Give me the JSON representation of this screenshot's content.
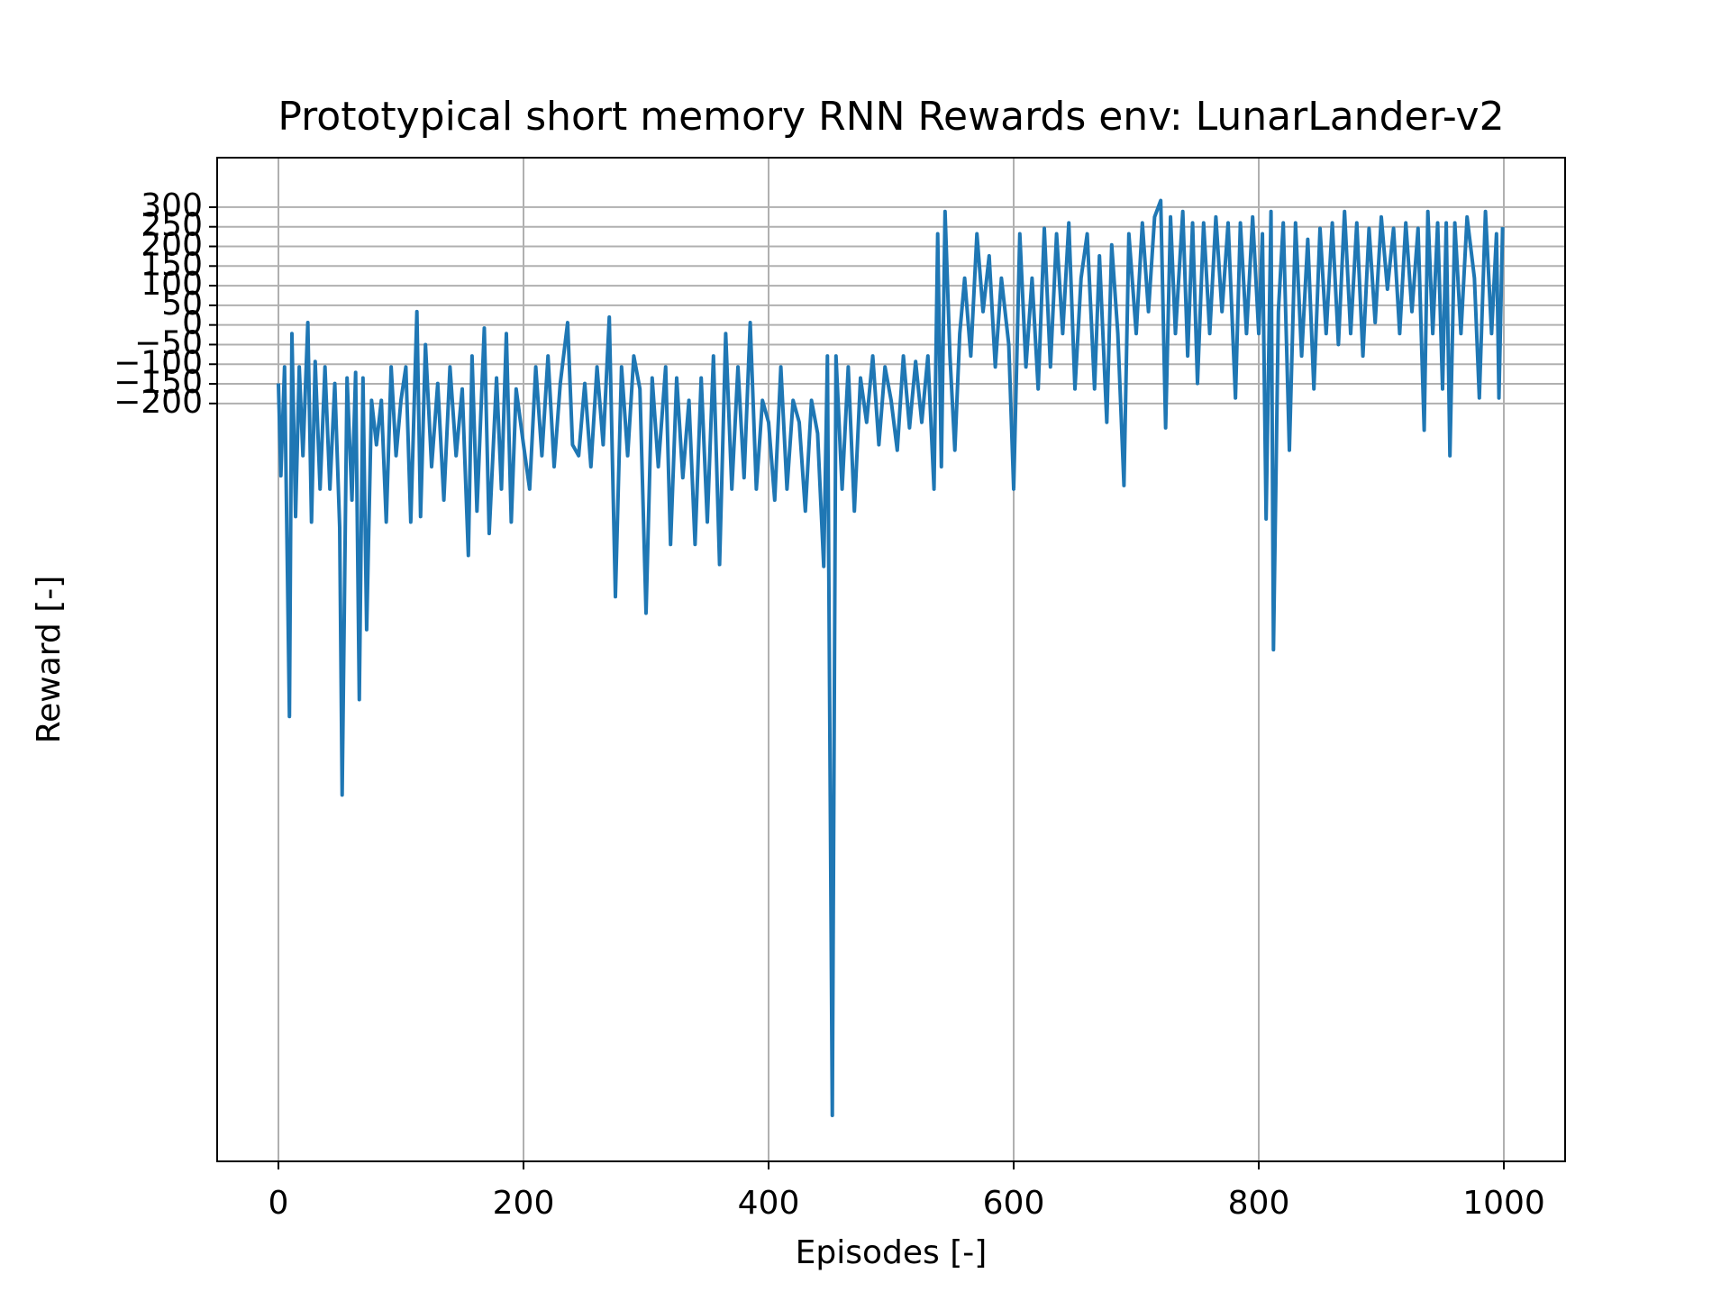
{
  "chart_data": {
    "type": "line",
    "title": "Prototypical short memory RNN Rewards env: LunarLander-v2",
    "xlabel": "Episodes [-]",
    "ylabel": "Reward [-]",
    "color": "#1f77b4",
    "grid": true,
    "xlim": [
      -50,
      1050
    ],
    "ylim": [
      -2130,
      426
    ],
    "xticks": [
      0,
      200,
      400,
      600,
      800,
      1000
    ],
    "yticks": [
      {
        "value": -200,
        "label": "−200"
      },
      {
        "value": -150,
        "label": "−150"
      },
      {
        "value": -100,
        "label": "−100"
      },
      {
        "value": -50,
        "label": "−50"
      },
      0,
      50,
      100,
      150,
      200,
      250,
      300
    ],
    "x": [
      0,
      2,
      5,
      9,
      11,
      14,
      17,
      20,
      24,
      27,
      30,
      34,
      38,
      42,
      46,
      50,
      52,
      56,
      60,
      63,
      66,
      69,
      72,
      76,
      80,
      84,
      88,
      92,
      96,
      100,
      104,
      108,
      113,
      116,
      120,
      125,
      130,
      135,
      140,
      145,
      150,
      155,
      158,
      162,
      168,
      172,
      178,
      182,
      186,
      190,
      194,
      200,
      205,
      210,
      215,
      220,
      225,
      230,
      236,
      240,
      245,
      250,
      255,
      260,
      265,
      270,
      275,
      280,
      285,
      290,
      295,
      300,
      305,
      310,
      316,
      320,
      325,
      330,
      335,
      340,
      345,
      350,
      355,
      360,
      365,
      370,
      375,
      380,
      385,
      390,
      395,
      400,
      405,
      410,
      415,
      420,
      425,
      430,
      435,
      440,
      445,
      448,
      452,
      455,
      460,
      465,
      470,
      475,
      480,
      485,
      490,
      495,
      500,
      505,
      510,
      515,
      520,
      525,
      530,
      535,
      538,
      541,
      544,
      548,
      552,
      556,
      560,
      565,
      570,
      575,
      580,
      585,
      590,
      596,
      600,
      605,
      610,
      615,
      620,
      625,
      630,
      635,
      640,
      645,
      650,
      655,
      660,
      666,
      670,
      676,
      680,
      685,
      690,
      694,
      700,
      705,
      710,
      715,
      720,
      724,
      728,
      732,
      738,
      742,
      746,
      750,
      755,
      760,
      765,
      770,
      775,
      781,
      785,
      790,
      795,
      800,
      803,
      806,
      810,
      812,
      816,
      820,
      825,
      830,
      835,
      840,
      845,
      850,
      855,
      860,
      865,
      870,
      875,
      880,
      885,
      890,
      895,
      900,
      905,
      910,
      915,
      920,
      925,
      930,
      935,
      938,
      942,
      946,
      950,
      953,
      956,
      960,
      965,
      970,
      976,
      980,
      985,
      990,
      994,
      996,
      999
    ],
    "values": [
      -149,
      -384,
      -107,
      -997,
      -22,
      -488,
      -107,
      -333,
      6,
      -502,
      -93,
      -418,
      -107,
      -418,
      -149,
      -516,
      -1197,
      -135,
      -446,
      -121,
      -954,
      -135,
      -776,
      -192,
      -305,
      -192,
      -502,
      -107,
      -333,
      -192,
      -107,
      -502,
      34,
      -488,
      -50,
      -361,
      -149,
      -446,
      -107,
      -333,
      -163,
      -587,
      -79,
      -474,
      -8,
      -531,
      -135,
      -418,
      -22,
      -502,
      -163,
      -305,
      -418,
      -107,
      -333,
      -79,
      -361,
      -149,
      6,
      -305,
      -333,
      -149,
      -361,
      -107,
      -305,
      20,
      -692,
      -107,
      -333,
      -79,
      -163,
      -734,
      -135,
      -361,
      -107,
      -559,
      -135,
      -389,
      -192,
      -559,
      -135,
      -502,
      -79,
      -610,
      -22,
      -418,
      -107,
      -389,
      6,
      -418,
      -192,
      -248,
      -446,
      -107,
      -418,
      -192,
      -248,
      -474,
      -192,
      -276,
      -615,
      -79,
      -2013,
      -79,
      -418,
      -107,
      -474,
      -135,
      -248,
      -79,
      -305,
      -107,
      -192,
      -319,
      -79,
      -262,
      -93,
      -248,
      -79,
      -418,
      232,
      -361,
      289,
      -79,
      -319,
      -22,
      119,
      -79,
      232,
      34,
      176,
      -107,
      119,
      -50,
      -418,
      232,
      -107,
      119,
      -163,
      246,
      -107,
      232,
      -22,
      260,
      -163,
      119,
      232,
      -163,
      176,
      -248,
      204,
      -22,
      -409,
      232,
      -22,
      260,
      34,
      275,
      317,
      -262,
      275,
      -22,
      289,
      -79,
      260,
      -149,
      260,
      -22,
      275,
      34,
      260,
      -186,
      260,
      -22,
      275,
      -22,
      232,
      -494,
      289,
      -827,
      34,
      260,
      -319,
      260,
      -79,
      218,
      -163,
      246,
      -22,
      260,
      -50,
      289,
      -22,
      260,
      -79,
      246,
      6,
      275,
      91,
      246,
      -22,
      260,
      34,
      246,
      -268,
      289,
      -22,
      260,
      -163,
      260,
      -333,
      260,
      -22,
      275,
      119,
      -186,
      289,
      -22,
      232,
      -186,
      249
    ]
  }
}
